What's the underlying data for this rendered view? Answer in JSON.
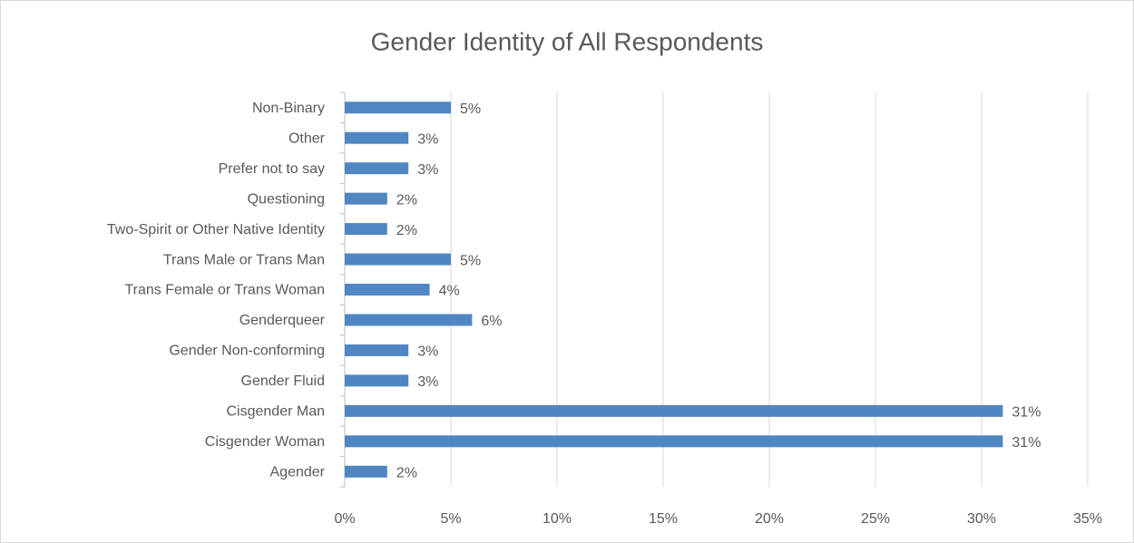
{
  "chart_data": {
    "type": "bar",
    "orientation": "horizontal",
    "title": "Gender Identity of All Respondents",
    "categories": [
      "Non-Binary",
      "Other",
      "Prefer not to say",
      "Questioning",
      "Two-Spirit or Other Native Identity",
      "Trans Male or Trans Man",
      "Trans Female or Trans Woman",
      "Genderqueer",
      "Gender Non-conforming",
      "Gender Fluid",
      "Cisgender Man",
      "Cisgender Woman",
      "Agender"
    ],
    "values": [
      5,
      3,
      3,
      2,
      2,
      5,
      4,
      6,
      3,
      3,
      31,
      31,
      2
    ],
    "value_labels": [
      "5%",
      "3%",
      "3%",
      "2%",
      "2%",
      "5%",
      "4%",
      "6%",
      "3%",
      "3%",
      "31%",
      "31%",
      "2%"
    ],
    "color": "#5086c1",
    "xlim": [
      0,
      35
    ],
    "xticks": [
      {
        "value": 0,
        "label": "0%"
      },
      {
        "value": 5,
        "label": "5%"
      },
      {
        "value": 10,
        "label": "10%"
      },
      {
        "value": 15,
        "label": "15%"
      },
      {
        "value": 20,
        "label": "20%"
      },
      {
        "value": 25,
        "label": "25%"
      },
      {
        "value": 30,
        "label": "30%"
      },
      {
        "value": 35,
        "label": "35%"
      }
    ],
    "grid": true
  }
}
